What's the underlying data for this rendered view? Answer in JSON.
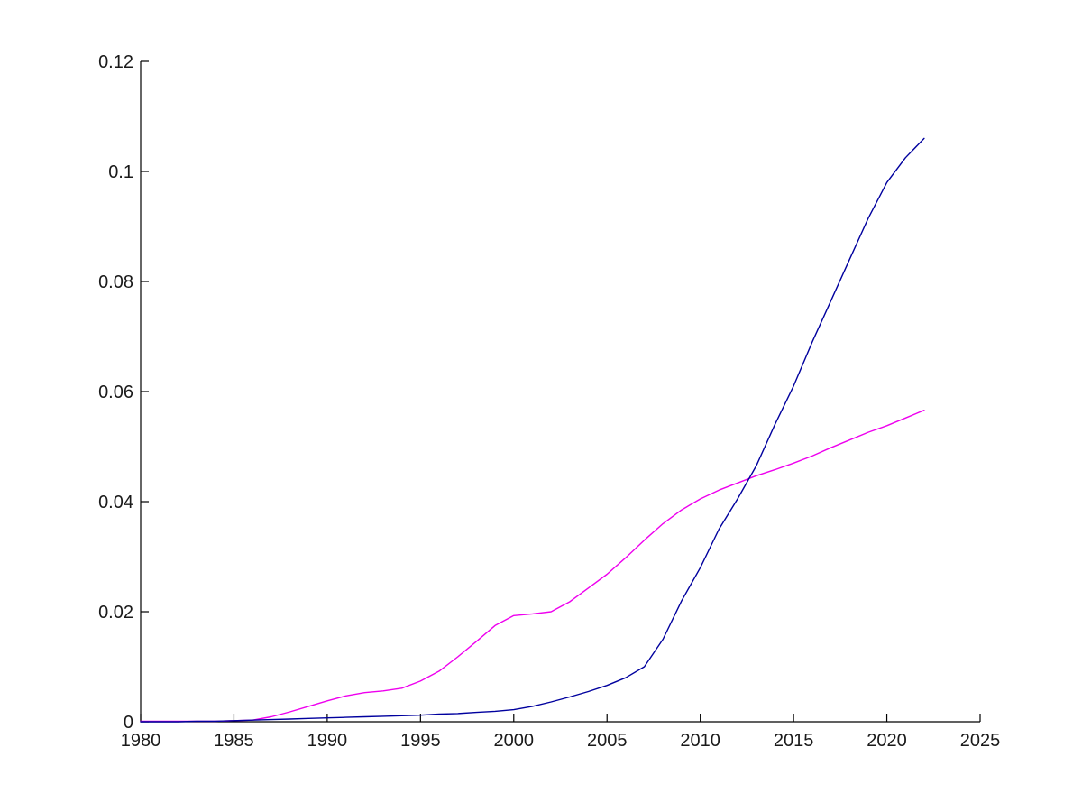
{
  "window": {
    "background": "#ffffff"
  },
  "plot": {
    "axis_color": "#000000",
    "tick_label_color": "#1a1a1a",
    "tick_length": 9
  },
  "chart_data": {
    "type": "line",
    "title": "",
    "xlabel": "",
    "ylabel": "",
    "xlim": [
      1980,
      2025
    ],
    "ylim": [
      0,
      0.12
    ],
    "grid": false,
    "legend": "none",
    "box": false,
    "xticks": [
      1980,
      1985,
      1990,
      1995,
      2000,
      2005,
      2010,
      2015,
      2020,
      2025
    ],
    "xtick_labels": [
      "1980",
      "1985",
      "1990",
      "1995",
      "2000",
      "2005",
      "2010",
      "2015",
      "2020",
      "2025"
    ],
    "yticks": [
      0,
      0.02,
      0.04,
      0.06,
      0.08,
      0.1,
      0.12
    ],
    "ytick_labels": [
      "0",
      "0.02",
      "0.04",
      "0.06",
      "0.08",
      "0.1",
      "0.12"
    ],
    "x": [
      1980,
      1981,
      1982,
      1983,
      1984,
      1985,
      1986,
      1987,
      1988,
      1989,
      1990,
      1991,
      1992,
      1993,
      1994,
      1995,
      1996,
      1997,
      1998,
      1999,
      2000,
      2001,
      2002,
      2003,
      2004,
      2005,
      2006,
      2007,
      2008,
      2009,
      2010,
      2011,
      2012,
      2013,
      2014,
      2015,
      2016,
      2017,
      2018,
      2019,
      2020,
      2021,
      2022
    ],
    "series": [
      {
        "name": "magenta-series",
        "color": "#EE00EE",
        "values": [
          0.0001,
          0.0001,
          0.0001,
          0.0001,
          0.0001,
          0.0002,
          0.0003,
          0.0009,
          0.0018,
          0.0028,
          0.0038,
          0.0047,
          0.0053,
          0.0056,
          0.0061,
          0.0074,
          0.0092,
          0.0118,
          0.0146,
          0.0175,
          0.0193,
          0.0196,
          0.02,
          0.0218,
          0.0243,
          0.0268,
          0.0298,
          0.033,
          0.036,
          0.0385,
          0.0405,
          0.0421,
          0.0434,
          0.0447,
          0.0458,
          0.047,
          0.0483,
          0.0498,
          0.0512,
          0.0526,
          0.0538,
          0.0552,
          0.0566
        ]
      },
      {
        "name": "navy-series",
        "color": "#00009E",
        "values": [
          0.0,
          0.0,
          0.0,
          0.0001,
          0.0001,
          0.0002,
          0.0003,
          0.0004,
          0.0005,
          0.0006,
          0.0007,
          0.0008,
          0.0009,
          0.001,
          0.0011,
          0.0012,
          0.0014,
          0.0015,
          0.0017,
          0.0019,
          0.0022,
          0.0028,
          0.0036,
          0.0045,
          0.0055,
          0.0066,
          0.008,
          0.01,
          0.015,
          0.022,
          0.028,
          0.035,
          0.0405,
          0.0465,
          0.054,
          0.061,
          0.069,
          0.0765,
          0.084,
          0.0915,
          0.098,
          0.1025,
          0.106
        ]
      }
    ]
  }
}
